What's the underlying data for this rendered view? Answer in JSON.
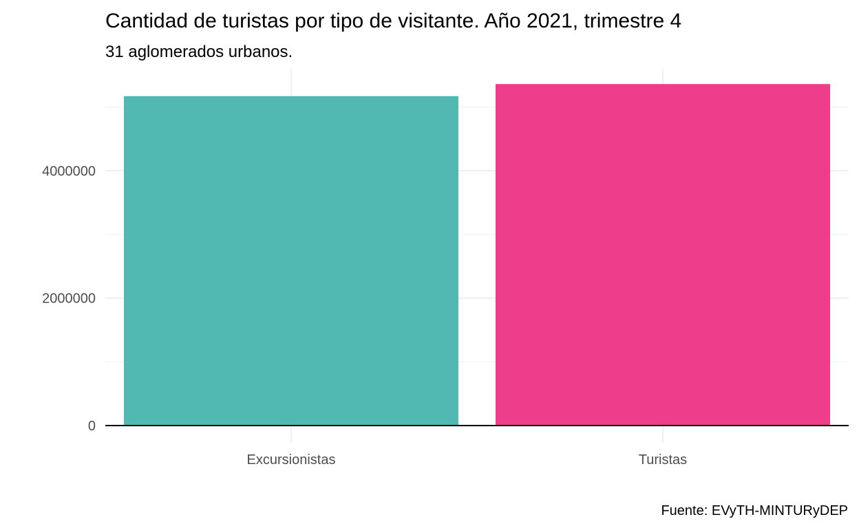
{
  "chart_data": {
    "type": "bar",
    "title": "Cantidad de turistas por tipo de visitante. Año 2021, trimestre 4",
    "subtitle": "31 aglomerados urbanos.",
    "caption": "Fuente: EVyTH-MINTURyDEP",
    "xlabel": "",
    "ylabel": "",
    "categories": [
      "Excursionistas",
      "Turistas"
    ],
    "values": [
      5170000,
      5360000
    ],
    "colors": [
      "#52b8b2",
      "#ee3e8b"
    ],
    "ylim": [
      0,
      5600000
    ],
    "y_ticks": [
      0,
      2000000,
      4000000
    ],
    "y_tick_labels": [
      "0",
      "2000000",
      "4000000"
    ],
    "y_minor_ticks": [
      1000000,
      3000000,
      5000000
    ],
    "grid": true,
    "legend": "none"
  }
}
